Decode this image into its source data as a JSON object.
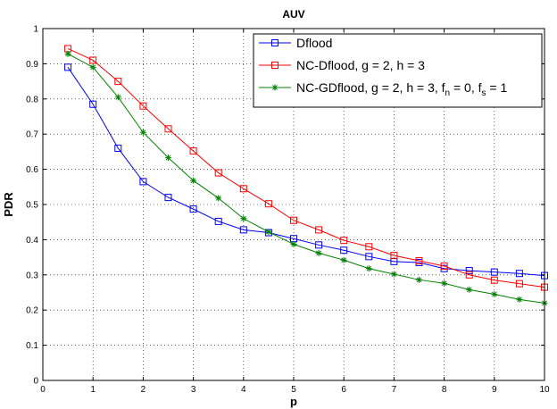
{
  "chart_data": {
    "type": "line",
    "title": "AUV",
    "xlabel": "p",
    "ylabel": "PDR",
    "xlim": [
      0,
      10
    ],
    "ylim": [
      0,
      1
    ],
    "xticks": [
      0,
      1,
      2,
      3,
      4,
      5,
      6,
      7,
      8,
      9,
      10
    ],
    "yticks": [
      0,
      0.1,
      0.2,
      0.3,
      0.4,
      0.5,
      0.6,
      0.7,
      0.8,
      0.9,
      1
    ],
    "grid": true,
    "legend_position": "top-right",
    "x": [
      0.5,
      1,
      1.5,
      2,
      2.5,
      3,
      3.5,
      4,
      4.5,
      5,
      5.5,
      6,
      6.5,
      7,
      7.5,
      8,
      8.5,
      9,
      9.5,
      10
    ],
    "series": [
      {
        "name": "Dflood",
        "color": "#0000ff",
        "marker": "square",
        "values": [
          0.89,
          0.785,
          0.66,
          0.565,
          0.52,
          0.487,
          0.452,
          0.428,
          0.42,
          0.403,
          0.385,
          0.37,
          0.352,
          0.338,
          0.335,
          0.318,
          0.312,
          0.308,
          0.304,
          0.298
        ]
      },
      {
        "name": "NC-Dflood, g = 2, h = 3",
        "color": "#ff0000",
        "marker": "square",
        "values": [
          0.943,
          0.91,
          0.85,
          0.78,
          0.715,
          0.652,
          0.59,
          0.545,
          0.502,
          0.455,
          0.428,
          0.398,
          0.38,
          0.355,
          0.34,
          0.325,
          0.3,
          0.285,
          0.275,
          0.265
        ]
      },
      {
        "name": "NC-GDflood, g = 2, h = 3, f_n = 0, f_s = 1",
        "color": "#008000",
        "marker": "star",
        "values": [
          0.928,
          0.89,
          0.805,
          0.705,
          0.633,
          0.568,
          0.518,
          0.46,
          0.422,
          0.387,
          0.362,
          0.342,
          0.318,
          0.302,
          0.286,
          0.276,
          0.258,
          0.245,
          0.23,
          0.22
        ]
      }
    ],
    "legend_labels": [
      {
        "main": "Dflood"
      },
      {
        "main": "NC-Dflood, g = 2, h = 3"
      },
      {
        "main": "NC-GDflood, g = 2, h = 3, f",
        "sub1": "n",
        "mid": " = 0, f",
        "sub2": "s",
        "end": " = 1"
      }
    ]
  }
}
